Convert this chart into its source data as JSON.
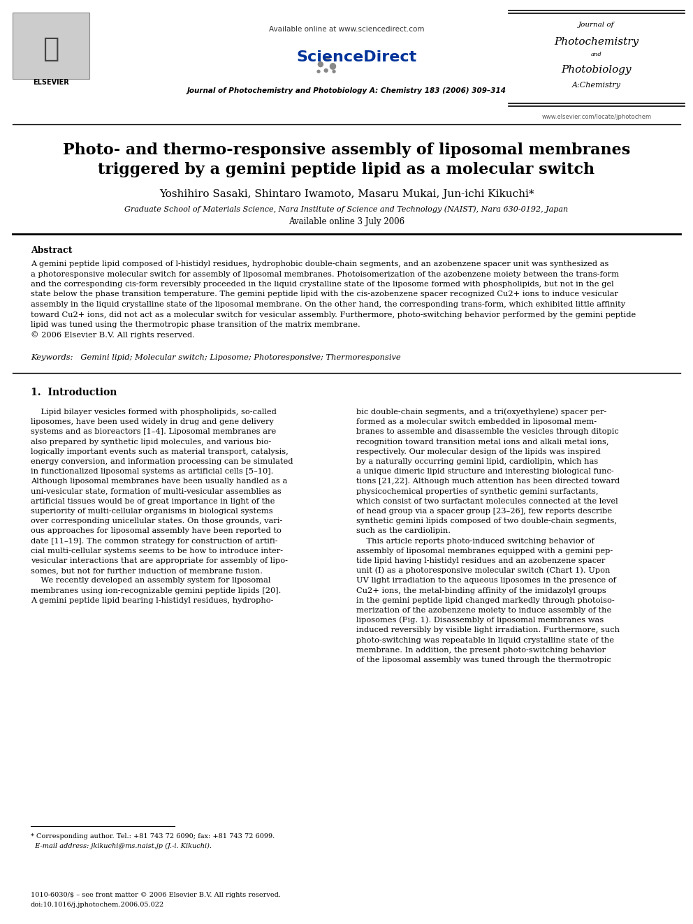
{
  "background_color": "#ffffff",
  "page_width": 9.92,
  "page_height": 13.23,
  "header": {
    "available_online": "Available online at www.sciencedirect.com",
    "sciencedirect": "ScienceDirect",
    "journal_line": "Journal of Photochemistry and Photobiology A: Chemistry 183 (2006) 309–314",
    "website": "www.elsevier.com/locate/jphotochem"
  },
  "title_line1": "Photo- and thermo-responsive assembly of liposomal membranes",
  "title_line2": "triggered by a gemini peptide lipid as a molecular switch",
  "authors": "Yoshihiro Sasaki, Shintaro Iwamoto, Masaru Mukai, Jun-ichi Kikuchi*",
  "affiliation": "Graduate School of Materials Science, Nara Institute of Science and Technology (NAIST), Nara 630-0192, Japan",
  "available_online_date": "Available online 3 July 2006",
  "abstract_title": "Abstract",
  "abstract_lines": [
    "A gemini peptide lipid composed of l-histidyl residues, hydrophobic double-chain segments, and an azobenzene spacer unit was synthesized as",
    "a photoresponsive molecular switch for assembly of liposomal membranes. Photoisomerization of the azobenzene moiety between the trans-form",
    "and the corresponding cis-form reversibly proceeded in the liquid crystalline state of the liposome formed with phospholipids, but not in the gel",
    "state below the phase transition temperature. The gemini peptide lipid with the cis-azobenzene spacer recognized Cu2+ ions to induce vesicular",
    "assembly in the liquid crystalline state of the liposomal membrane. On the other hand, the corresponding trans-form, which exhibited little affinity",
    "toward Cu2+ ions, did not act as a molecular switch for vesicular assembly. Furthermore, photo-switching behavior performed by the gemini peptide",
    "lipid was tuned using the thermotropic phase transition of the matrix membrane.",
    "© 2006 Elsevier B.V. All rights reserved."
  ],
  "keywords": "Keywords:   Gemini lipid; Molecular switch; Liposome; Photoresponsive; Thermoresponsive",
  "section1_title": "1.  Introduction",
  "col1_lines": [
    "    Lipid bilayer vesicles formed with phospholipids, so-called",
    "liposomes, have been used widely in drug and gene delivery",
    "systems and as bioreactors [1–4]. Liposomal membranes are",
    "also prepared by synthetic lipid molecules, and various bio-",
    "logically important events such as material transport, catalysis,",
    "energy conversion, and information processing can be simulated",
    "in functionalized liposomal systems as artificial cells [5–10].",
    "Although liposomal membranes have been usually handled as a",
    "uni-vesicular state, formation of multi-vesicular assemblies as",
    "artificial tissues would be of great importance in light of the",
    "superiority of multi-cellular organisms in biological systems",
    "over corresponding unicellular states. On those grounds, vari-",
    "ous approaches for liposomal assembly have been reported to",
    "date [11–19]. The common strategy for construction of artifi-",
    "cial multi-cellular systems seems to be how to introduce inter-",
    "vesicular interactions that are appropriate for assembly of lipo-",
    "somes, but not for further induction of membrane fusion.",
    "    We recently developed an assembly system for liposomal",
    "membranes using ion-recognizable gemini peptide lipids [20].",
    "A gemini peptide lipid bearing l-histidyl residues, hydropho-"
  ],
  "col2_lines": [
    "bic double-chain segments, and a tri(oxyethylene) spacer per-",
    "formed as a molecular switch embedded in liposomal mem-",
    "branes to assemble and disassemble the vesicles through ditopic",
    "recognition toward transition metal ions and alkali metal ions,",
    "respectively. Our molecular design of the lipids was inspired",
    "by a naturally occurring gemini lipid, cardiolipin, which has",
    "a unique dimeric lipid structure and interesting biological func-",
    "tions [21,22]. Although much attention has been directed toward",
    "physicochemical properties of synthetic gemini surfactants,",
    "which consist of two surfactant molecules connected at the level",
    "of head group via a spacer group [23–26], few reports describe",
    "synthetic gemini lipids composed of two double-chain segments,",
    "such as the cardiolipin.",
    "    This article reports photo-induced switching behavior of",
    "assembly of liposomal membranes equipped with a gemini pep-",
    "tide lipid having l-histidyl residues and an azobenzene spacer",
    "unit (I) as a photoresponsive molecular switch (Chart 1). Upon",
    "UV light irradiation to the aqueous liposomes in the presence of",
    "Cu2+ ions, the metal-binding affinity of the imidazolyl groups",
    "in the gemini peptide lipid changed markedly through photoiso-",
    "merization of the azobenzene moiety to induce assembly of the",
    "liposomes (Fig. 1). Disassembly of liposomal membranes was",
    "induced reversibly by visible light irradiation. Furthermore, such",
    "photo-switching was repeatable in liquid crystalline state of the",
    "membrane. In addition, the present photo-switching behavior",
    "of the liposomal assembly was tuned through the thermotropic"
  ],
  "footnote_line1": "* Corresponding author. Tel.: +81 743 72 6090; fax: +81 743 72 6099.",
  "footnote_line2": "  E-mail address: jkikuchi@ms.naist.jp (J.-i. Kikuchi).",
  "footer_line1": "1010-6030/$ – see front matter © 2006 Elsevier B.V. All rights reserved.",
  "footer_line2": "doi:10.1016/j.jphotochem.2006.05.022"
}
